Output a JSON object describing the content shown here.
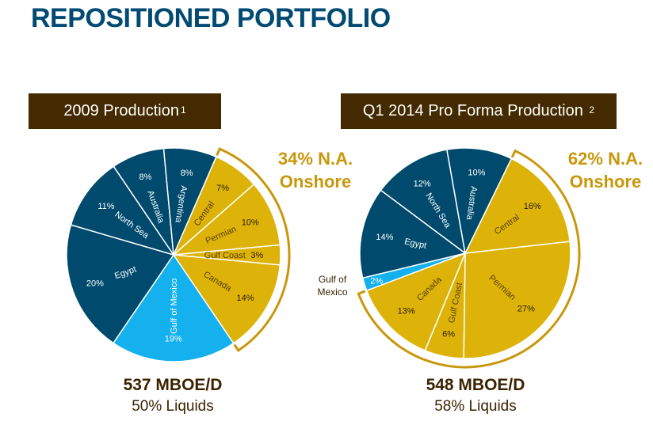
{
  "title": "REPOSITIONED PORTFOLIO",
  "colors": {
    "international": "#004a6e",
    "gulf_of_mexico": "#14b1ee",
    "na_onshore": "#ddb30a",
    "bracket": "#c9970b",
    "header_bg": "#432a00"
  },
  "chart_data": [
    {
      "type": "pie",
      "title": "2009 Production",
      "title_footnote": "1",
      "start_angle_deg": 23.5,
      "direction": "clockwise",
      "slices": [
        {
          "label": "Central",
          "value": 7,
          "display": "7%",
          "group": "na_onshore"
        },
        {
          "label": "Permian",
          "value": 10,
          "display": "10%",
          "group": "na_onshore"
        },
        {
          "label": "Gulf Coast",
          "value": 3,
          "display": "3%",
          "group": "na_onshore"
        },
        {
          "label": "Canada",
          "value": 14,
          "display": "14%",
          "group": "na_onshore"
        },
        {
          "label": "Gulf of Mexico",
          "value": 19,
          "display": "19%",
          "group": "gulf_of_mexico"
        },
        {
          "label": "Egypt",
          "value": 20,
          "display": "20%",
          "group": "international"
        },
        {
          "label": "North Sea",
          "value": 11,
          "display": "11%",
          "group": "international"
        },
        {
          "label": "Australia",
          "value": 8,
          "display": "8%",
          "group": "international"
        },
        {
          "label": "Argentina",
          "value": 8,
          "display": "8%",
          "group": "international"
        }
      ],
      "annotation": {
        "line1": "34% N.A.",
        "line2": "Onshore"
      },
      "summary": {
        "production": "537 MBOE/D",
        "liquids": "50% Liquids"
      }
    },
    {
      "type": "pie",
      "title": "Q1 2014 Pro Forma Production",
      "title_footnote": "2",
      "start_angle_deg": 26,
      "direction": "clockwise",
      "slices": [
        {
          "label": "Central",
          "value": 16,
          "display": "16%",
          "group": "na_onshore"
        },
        {
          "label": "Permian",
          "value": 27,
          "display": "27%",
          "group": "na_onshore"
        },
        {
          "label": "Gulf Coast",
          "value": 6,
          "display": "6%",
          "group": "na_onshore"
        },
        {
          "label": "Canada",
          "value": 13,
          "display": "13%",
          "group": "na_onshore"
        },
        {
          "label": "Gulf of Mexico",
          "value": 2,
          "display": "2%",
          "group": "gulf_of_mexico"
        },
        {
          "label": "Egypt",
          "value": 14,
          "display": "14%",
          "group": "international"
        },
        {
          "label": "North Sea",
          "value": 12,
          "display": "12%",
          "group": "international"
        },
        {
          "label": "Australia",
          "value": 10,
          "display": "10%",
          "group": "international"
        }
      ],
      "annotation": {
        "line1": "62% N.A.",
        "line2": "Onshore"
      },
      "external_label": {
        "line1": "Gulf of",
        "line2": "Mexico"
      },
      "summary": {
        "production": "548 MBOE/D",
        "liquids": "58% Liquids"
      }
    }
  ]
}
